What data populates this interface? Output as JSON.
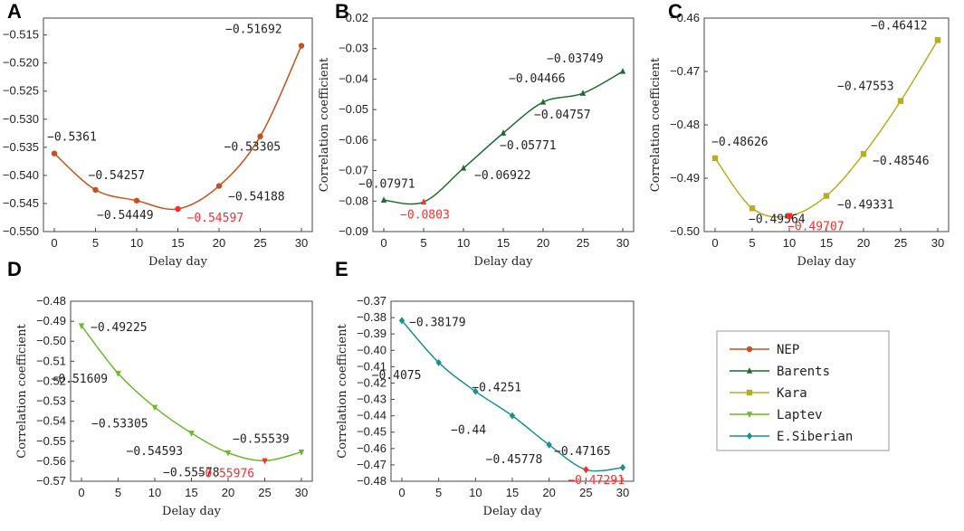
{
  "chart_data": [
    {
      "panel": "A",
      "type": "line",
      "series_name": "NEP",
      "color": "#c8501a",
      "marker": "circle",
      "x": [
        0,
        5,
        10,
        15,
        20,
        25,
        30
      ],
      "y": [
        -0.5361,
        -0.54257,
        -0.54449,
        -0.54597,
        -0.54188,
        -0.53305,
        -0.51692
      ],
      "labels": [
        "−0.5361",
        "−0.54257",
        "−0.54449",
        "−0.54597",
        "−0.54188",
        "−0.53305",
        "−0.51692"
      ],
      "min_index": 3,
      "xlabel": "Delay day",
      "ylabel": "Correlation coefficient",
      "xticks": [
        0,
        5,
        10,
        15,
        20,
        25,
        30
      ],
      "yticks": [
        -0.55,
        -0.545,
        -0.54,
        -0.535,
        -0.53,
        -0.525,
        -0.52,
        -0.515
      ],
      "ytick_labels": [
        "−0.550",
        "−0.545",
        "−0.540",
        "−0.535",
        "−0.530",
        "−0.525",
        "−0.520",
        "−0.515"
      ],
      "ylim": [
        -0.55,
        -0.512
      ]
    },
    {
      "panel": "B",
      "type": "line",
      "series_name": "Barents",
      "color": "#1f6b2e",
      "marker": "triangle-up",
      "x": [
        0,
        5,
        10,
        15,
        20,
        25,
        30
      ],
      "y": [
        -0.07971,
        -0.0803,
        -0.06922,
        -0.05771,
        -0.04757,
        -0.04466,
        -0.03749
      ],
      "labels": [
        "−0.07971",
        "−0.0803",
        "−0.06922",
        "−0.05771",
        "−0.04757",
        "−0.04466",
        "−0.03749"
      ],
      "min_index": 1,
      "xlabel": "Delay day",
      "ylabel": "Correlation coefficient",
      "xticks": [
        0,
        5,
        10,
        15,
        20,
        25,
        30
      ],
      "yticks": [
        -0.09,
        -0.08,
        -0.07,
        -0.06,
        -0.05,
        -0.04,
        -0.03,
        -0.02
      ],
      "ytick_labels": [
        "−0.09",
        "−0.08",
        "−0.07",
        "−0.06",
        "−0.05",
        "−0.04",
        "−0.03",
        "−0.02"
      ],
      "ylim": [
        -0.09,
        -0.02
      ]
    },
    {
      "panel": "C",
      "type": "line",
      "series_name": "Kara",
      "color": "#b5ad22",
      "marker": "square",
      "x": [
        0,
        5,
        10,
        15,
        20,
        25,
        30
      ],
      "y": [
        -0.48626,
        -0.49564,
        -0.49707,
        -0.49331,
        -0.48546,
        -0.47553,
        -0.46412
      ],
      "labels": [
        "−0.48626",
        "−0.49564",
        "−0.49707",
        "−0.49331",
        "−0.48546",
        "−0.47553",
        "−0.46412"
      ],
      "min_index": 2,
      "xlabel": "Delay day",
      "ylabel": "Correlation coefficient",
      "xticks": [
        0,
        5,
        10,
        15,
        20,
        25,
        30
      ],
      "yticks": [
        -0.5,
        -0.49,
        -0.48,
        -0.47,
        -0.46
      ],
      "ytick_labels": [
        "−0.50",
        "−0.49",
        "−0.48",
        "−0.47",
        "−0.46"
      ],
      "ylim": [
        -0.5,
        -0.46
      ]
    },
    {
      "panel": "D",
      "type": "line",
      "series_name": "Laptev",
      "color": "#6ab82c",
      "marker": "triangle-down",
      "x": [
        0,
        5,
        10,
        15,
        20,
        25,
        30
      ],
      "y": [
        -0.49225,
        -0.51609,
        -0.53305,
        -0.54593,
        -0.55578,
        -0.55976,
        -0.55539
      ],
      "labels": [
        "−0.49225",
        "−0.51609",
        "−0.53305",
        "−0.54593",
        "−0.55578",
        "−0.55976",
        "−0.55539"
      ],
      "min_index": 5,
      "xlabel": "Delay day",
      "ylabel": "Correlation coefficient",
      "xticks": [
        0,
        5,
        10,
        15,
        20,
        25,
        30
      ],
      "yticks": [
        -0.57,
        -0.56,
        -0.55,
        -0.54,
        -0.53,
        -0.52,
        -0.51,
        -0.5,
        -0.49,
        -0.48
      ],
      "ytick_labels": [
        "−0.57",
        "−0.56",
        "−0.55",
        "−0.54",
        "−0.53",
        "−0.52",
        "−0.51",
        "−0.50",
        "−0.49",
        "−0.48"
      ],
      "ylim": [
        -0.57,
        -0.48
      ]
    },
    {
      "panel": "E",
      "type": "line",
      "series_name": "E.Siberian",
      "color": "#1a9090",
      "marker": "diamond",
      "x": [
        0,
        5,
        10,
        15,
        20,
        25,
        30
      ],
      "y": [
        -0.38179,
        -0.4075,
        -0.4251,
        -0.44,
        -0.45778,
        -0.47291,
        -0.47165
      ],
      "labels": [
        "−0.38179",
        "−0.4075",
        "−0.4251",
        "−0.44",
        "−0.45778",
        "−0.47291",
        "−0.47165"
      ],
      "min_index": 5,
      "xlabel": "Delay day",
      "ylabel": "Correlation coefficient",
      "xticks": [
        0,
        5,
        10,
        15,
        20,
        25,
        30
      ],
      "yticks": [
        -0.48,
        -0.47,
        -0.46,
        -0.45,
        -0.44,
        -0.43,
        -0.42,
        -0.41,
        -0.4,
        -0.39,
        -0.38,
        -0.37
      ],
      "ytick_labels": [
        "−0.48",
        "−0.47",
        "−0.46",
        "−0.45",
        "−0.44",
        "−0.43",
        "−0.42",
        "−0.41",
        "−0.40",
        "−0.39",
        "−0.38",
        "−0.37"
      ],
      "ylim": [
        -0.48,
        -0.37
      ]
    }
  ],
  "legend": {
    "location": "right-bottom",
    "entries": [
      {
        "label": "NEP",
        "color": "#c8501a",
        "marker": "circle"
      },
      {
        "label": "Barents",
        "color": "#1f6b2e",
        "marker": "triangle-up"
      },
      {
        "label": "Kara",
        "color": "#b5ad22",
        "marker": "square"
      },
      {
        "label": "Laptev",
        "color": "#6ab82c",
        "marker": "triangle-down"
      },
      {
        "label": "E.Siberian",
        "color": "#1a9090",
        "marker": "diamond"
      }
    ]
  },
  "min_label_color": "#ff2a2a",
  "min_marker_color": "#ff2a2a"
}
